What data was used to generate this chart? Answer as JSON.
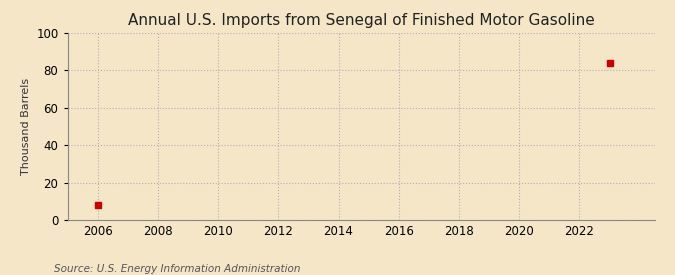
{
  "title": "Annual U.S. Imports from Senegal of Finished Motor Gasoline",
  "ylabel": "Thousand Barrels",
  "source": "Source: U.S. Energy Information Administration",
  "background_color": "#f5e6c8",
  "plot_bg_color": "#f5e6c8",
  "data_points": [
    {
      "year": 2006,
      "value": 8
    },
    {
      "year": 2023,
      "value": 84
    }
  ],
  "marker_color": "#cc0000",
  "marker_size": 4,
  "xlim": [
    2005.0,
    2024.5
  ],
  "ylim": [
    0,
    100
  ],
  "xticks": [
    2006,
    2008,
    2010,
    2012,
    2014,
    2016,
    2018,
    2020,
    2022
  ],
  "yticks": [
    0,
    20,
    40,
    60,
    80,
    100
  ],
  "grid_color": "#b0b0b0",
  "grid_linestyle": ":",
  "title_fontsize": 11,
  "label_fontsize": 8,
  "tick_fontsize": 8.5,
  "source_fontsize": 7.5
}
